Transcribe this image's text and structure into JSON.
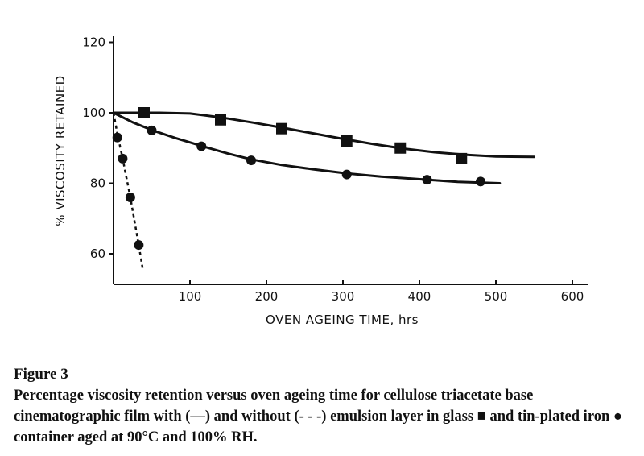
{
  "caption": {
    "figure_label": "Figure 3",
    "text": "Percentage viscosity retention versus oven ageing time for cellulose triacetate base cinematographic film with (—) and without (- - -) emulsion layer in glass ■ and tin-plated iron ● container aged at 90°C and 100% RH."
  },
  "chart_data": {
    "type": "line",
    "title": "",
    "xlabel": "OVEN AGEING TIME, hrs",
    "ylabel": "% VISCOSITY RETAINED",
    "xlim": [
      0,
      620
    ],
    "ylim": [
      52,
      122
    ],
    "xticks": [
      100,
      200,
      300,
      400,
      500,
      600
    ],
    "yticks": [
      60,
      80,
      100,
      120
    ],
    "grid": false,
    "legend": "none",
    "series": [
      {
        "marker": "square",
        "linestyle": "solid",
        "points": [
          [
            40,
            100
          ],
          [
            140,
            98
          ],
          [
            220,
            95.5
          ],
          [
            305,
            92
          ],
          [
            375,
            90
          ],
          [
            455,
            87
          ]
        ],
        "curve": [
          [
            0,
            100
          ],
          [
            60,
            100
          ],
          [
            100,
            99.8
          ],
          [
            140,
            98.7
          ],
          [
            180,
            97.3
          ],
          [
            220,
            95.8
          ],
          [
            260,
            94.2
          ],
          [
            300,
            92.6
          ],
          [
            340,
            91.1
          ],
          [
            380,
            89.8
          ],
          [
            420,
            88.8
          ],
          [
            460,
            88.1
          ],
          [
            500,
            87.6
          ],
          [
            550,
            87.5
          ]
        ]
      },
      {
        "marker": "circle",
        "linestyle": "solid",
        "points": [
          [
            50,
            95
          ],
          [
            115,
            90.5
          ],
          [
            180,
            86.5
          ],
          [
            305,
            82.5
          ],
          [
            410,
            81
          ],
          [
            480,
            80.5
          ]
        ],
        "curve": [
          [
            0,
            100
          ],
          [
            25,
            97.3
          ],
          [
            50,
            95.1
          ],
          [
            80,
            92.9
          ],
          [
            115,
            90.6
          ],
          [
            150,
            88.4
          ],
          [
            180,
            86.8
          ],
          [
            220,
            85.2
          ],
          [
            260,
            84
          ],
          [
            305,
            82.8
          ],
          [
            350,
            81.9
          ],
          [
            410,
            81
          ],
          [
            450,
            80.4
          ],
          [
            505,
            80
          ]
        ]
      },
      {
        "marker": "circle",
        "linestyle": "dashed",
        "points": [
          [
            5,
            93
          ],
          [
            12,
            87
          ],
          [
            22,
            76
          ],
          [
            33,
            62.5
          ]
        ],
        "curve": [
          [
            0,
            100
          ],
          [
            5,
            94
          ],
          [
            12,
            87
          ],
          [
            22,
            76
          ],
          [
            33,
            62.5
          ],
          [
            38,
            56
          ]
        ]
      }
    ]
  }
}
